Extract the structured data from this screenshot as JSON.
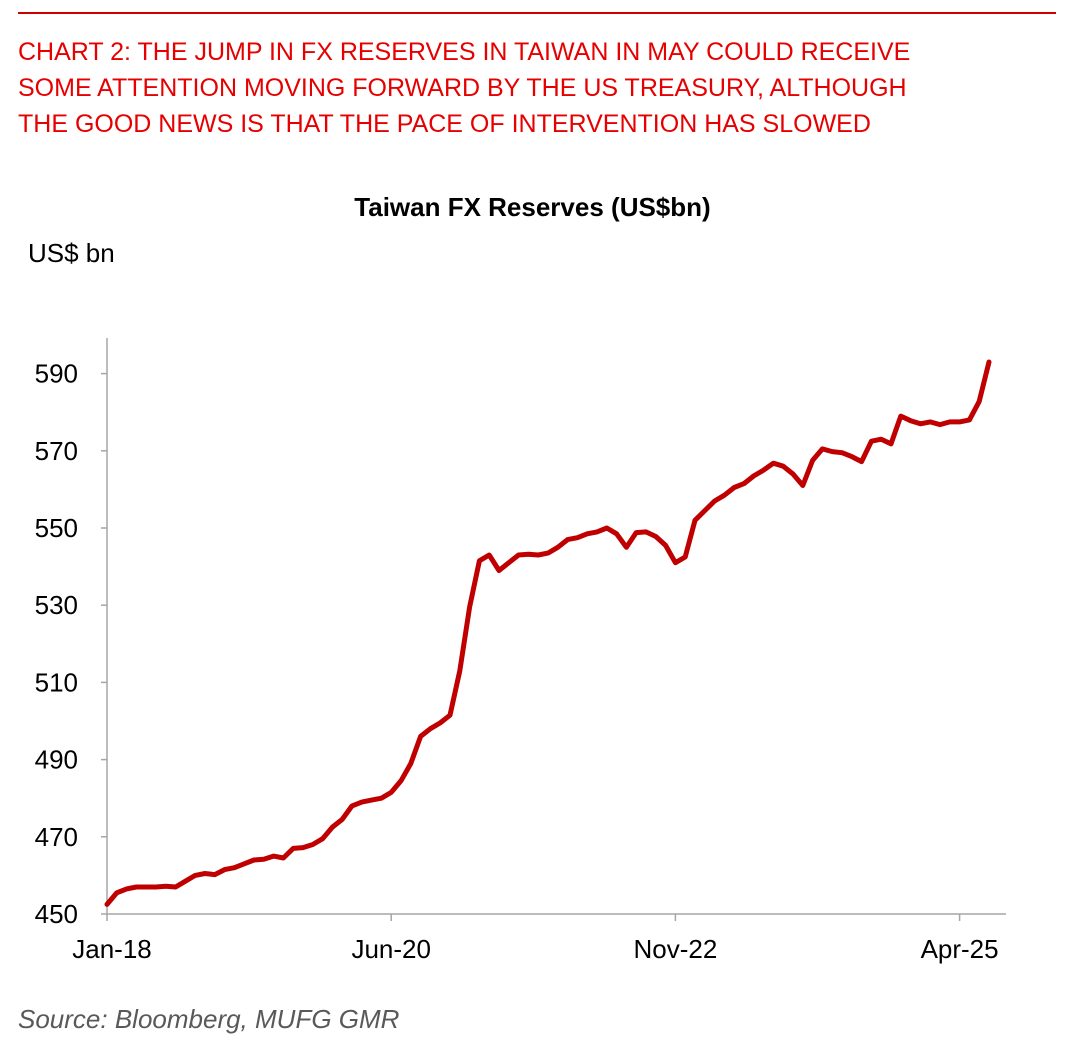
{
  "caption": {
    "lines": [
      "CHART 2: THE JUMP IN FX RESERVES IN TAIWAN IN MAY COULD RECEIVE",
      "SOME ATTENTION MOVING FORWARD BY THE US TREASURY, ALTHOUGH",
      "THE GOOD NEWS IS THAT THE PACE OF INTERVENTION HAS SLOWED"
    ]
  },
  "source": "Source: Bloomberg, MUFG GMR",
  "colors": {
    "accent": "#e60000",
    "rule": "#cc0000",
    "series": "#c00000",
    "axis": "#a6a6a6",
    "source_text": "#595959"
  },
  "chart_data": {
    "type": "line",
    "title": "Taiwan FX Reserves (US$bn)",
    "ylabel": "US$ bn",
    "xlabel": "",
    "ylim": [
      450,
      600
    ],
    "yticks": [
      450,
      470,
      490,
      510,
      530,
      550,
      570,
      590
    ],
    "xticks": [
      {
        "label": "Jan-18",
        "index": 0
      },
      {
        "label": "Jun-20",
        "index": 29
      },
      {
        "label": "Nov-22",
        "index": 58
      },
      {
        "label": "Apr-25",
        "index": 87
      }
    ],
    "grid": false,
    "series": [
      {
        "name": "Taiwan FX Reserves",
        "start": "Jan-18",
        "frequency": "monthly",
        "values": [
          452.5,
          455.5,
          456.5,
          457.0,
          457.0,
          457.0,
          457.2,
          457.0,
          458.5,
          460.0,
          460.5,
          460.2,
          461.5,
          462.0,
          463.0,
          464.0,
          464.2,
          465.0,
          464.5,
          467.0,
          467.2,
          468.0,
          469.5,
          472.5,
          474.5,
          478.0,
          479.0,
          479.5,
          480.0,
          481.5,
          484.5,
          489.0,
          496.0,
          498.0,
          499.5,
          501.5,
          513.0,
          529.5,
          541.5,
          543.0,
          539.0,
          541.0,
          543.0,
          543.2,
          543.0,
          543.5,
          545.0,
          547.0,
          547.5,
          548.5,
          549.0,
          550.0,
          548.5,
          545.0,
          548.8,
          549.0,
          547.8,
          545.5,
          541.0,
          542.5,
          552.0,
          554.5,
          557.0,
          558.5,
          560.5,
          561.5,
          563.5,
          565.0,
          566.8,
          566.0,
          564.0,
          561.0,
          567.5,
          570.5,
          569.8,
          569.5,
          568.5,
          567.2,
          572.5,
          573.0,
          571.8,
          579.0,
          577.8,
          577.0,
          577.5,
          576.8,
          577.5,
          577.5,
          578.0,
          582.8,
          593.0
        ]
      }
    ]
  }
}
